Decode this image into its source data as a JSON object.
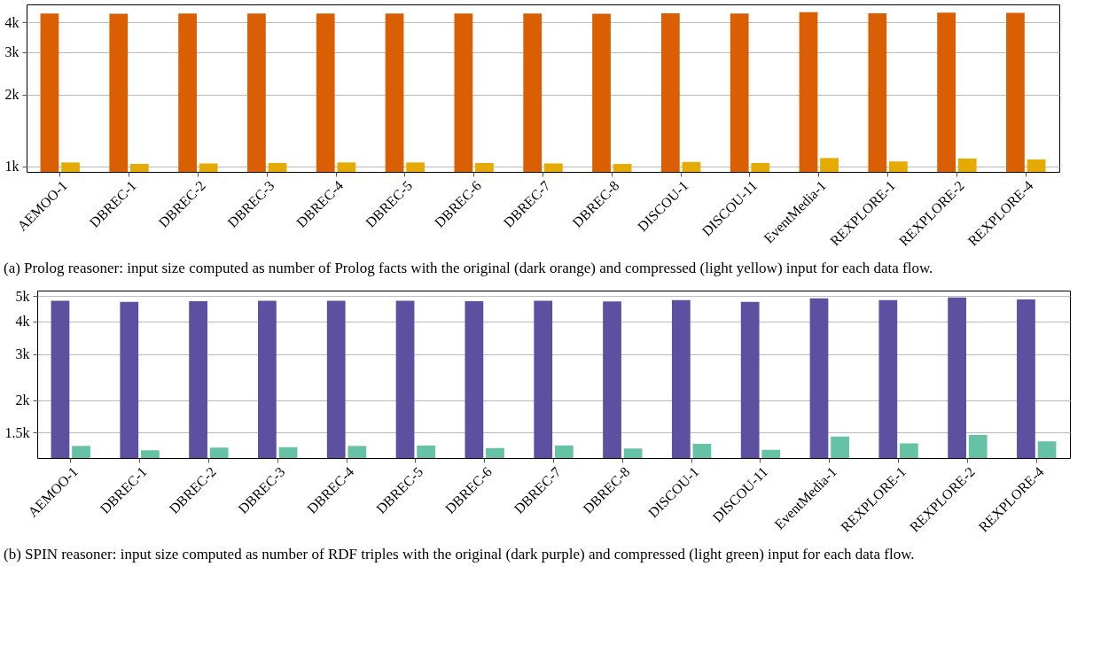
{
  "chart_data": [
    {
      "type": "bar",
      "categories": [
        "AEMOO-1",
        "DBREC-1",
        "DBREC-2",
        "DBREC-3",
        "DBREC-4",
        "DBREC-5",
        "DBREC-6",
        "DBREC-7",
        "DBREC-8",
        "DISCOU-1",
        "DISCOU-11",
        "EventMedia-1",
        "REXPLORE-1",
        "REXPLORE-2",
        "REXPLORE-4"
      ],
      "series": [
        {
          "color": "#d95f02",
          "values": [
            4350,
            4340,
            4350,
            4350,
            4350,
            4350,
            4350,
            4350,
            4340,
            4360,
            4350,
            4410,
            4360,
            4390,
            4380
          ]
        },
        {
          "color": "#e6ab02",
          "values": [
            1040,
            1025,
            1030,
            1035,
            1040,
            1040,
            1035,
            1030,
            1025,
            1045,
            1035,
            1085,
            1050,
            1080,
            1070
          ]
        }
      ],
      "log": true,
      "ylim": [
        950,
        4750
      ],
      "yticks": [
        {
          "value": 1000,
          "label": "1k"
        },
        {
          "value": 2000,
          "label": "2k"
        },
        {
          "value": 3000,
          "label": "3k"
        },
        {
          "value": 4000,
          "label": "4k"
        }
      ],
      "grid": "y",
      "legend": false,
      "annotations": [
        "(a) Prolog reasoner: input size computed as number of Prolog facts with the original (dark orange) and compressed (light yellow) input for each data flow."
      ]
    },
    {
      "type": "bar",
      "categories": [
        "AEMOO-1",
        "DBREC-1",
        "DBREC-2",
        "DBREC-3",
        "DBREC-4",
        "DBREC-5",
        "DBREC-6",
        "DBREC-7",
        "DBREC-8",
        "DISCOU-1",
        "DISCOU-11",
        "EventMedia-1",
        "REXPLORE-1",
        "REXPLORE-2",
        "REXPLORE-4"
      ],
      "series": [
        {
          "color": "#5e50a1",
          "values": [
            4800,
            4750,
            4780,
            4800,
            4800,
            4800,
            4780,
            4800,
            4770,
            4830,
            4750,
            4900,
            4830,
            4940,
            4860
          ]
        },
        {
          "color": "#66c2a5",
          "values": [
            1335,
            1285,
            1315,
            1320,
            1335,
            1340,
            1310,
            1340,
            1305,
            1360,
            1290,
            1450,
            1365,
            1470,
            1390
          ]
        }
      ],
      "log": true,
      "ylim": [
        1200,
        5250
      ],
      "yticks": [
        {
          "value": 1500,
          "label": "1.5k"
        },
        {
          "value": 2000,
          "label": "2k"
        },
        {
          "value": 3000,
          "label": "3k"
        },
        {
          "value": 4000,
          "label": "4k"
        },
        {
          "value": 5000,
          "label": "5k"
        }
      ],
      "grid": "y",
      "legend": false,
      "annotations": [
        "(b) SPIN reasoner: input size computed as number of RDF triples with the original (dark purple) and compressed (light green) input for each data flow."
      ]
    }
  ]
}
